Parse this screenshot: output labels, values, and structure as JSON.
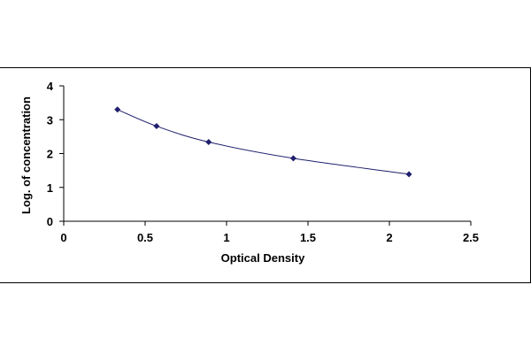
{
  "chart_data": {
    "type": "scatter",
    "title": "",
    "xlabel": "Optical Density",
    "ylabel": "Log. of concentration",
    "xlim": [
      0,
      2.5
    ],
    "ylim": [
      0,
      4
    ],
    "x_ticks": [
      "0",
      "0.5",
      "1",
      "1.5",
      "2",
      "2.5"
    ],
    "y_ticks": [
      "0",
      "1",
      "2",
      "3",
      "4"
    ],
    "grid": false,
    "legend": "none",
    "series": [
      {
        "x": [
          0.33,
          0.57,
          0.89,
          1.41,
          2.12
        ],
        "y": [
          3.3,
          2.81,
          2.34,
          1.86,
          1.39
        ],
        "color": "#1f1f6e",
        "marker": "diamond",
        "trendline": "smooth"
      }
    ]
  }
}
